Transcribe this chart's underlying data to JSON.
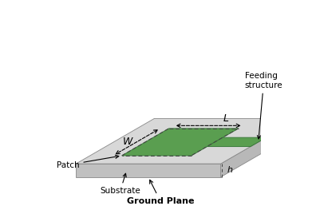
{
  "bg_color": "#ffffff",
  "substrate_top_color": "#d8d8d8",
  "substrate_front_color": "#c0c0c0",
  "substrate_right_color": "#b8b8b8",
  "patch_color": "#5a9e50",
  "feed_color": "#5a9e50",
  "dash_color": "#444444",
  "arrow_color": "#000000",
  "text_color": "#000000",
  "edge_color": "#888888",
  "labels": {
    "L": "L",
    "W": "W",
    "h": "h",
    "patch": "Patch",
    "substrate": "Substrate",
    "ground_plane": "Ground Plane",
    "feeding_structure": "Feeding\nstructure"
  }
}
